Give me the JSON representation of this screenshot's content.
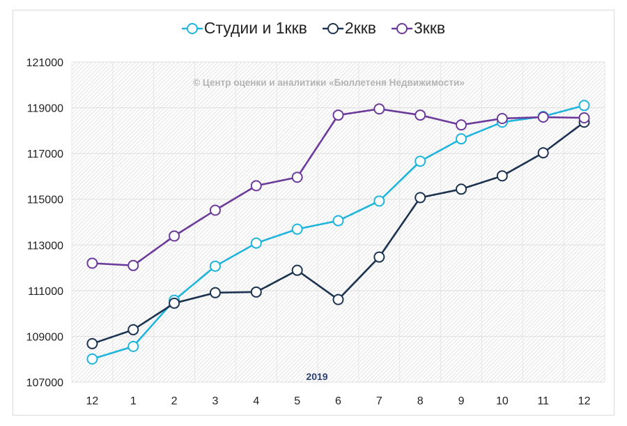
{
  "chart_data": {
    "type": "line",
    "title": "",
    "watermark": "© Центр оценки и аналитики «Бюллетеня Недвижимости»",
    "year_label": "2019",
    "xlabel": "",
    "ylabel": "",
    "categories": [
      "12",
      "1",
      "2",
      "3",
      "4",
      "5",
      "6",
      "7",
      "8",
      "9",
      "10",
      "11",
      "12"
    ],
    "ylim": [
      107000,
      121000
    ],
    "yticks": [
      "107000",
      "109000",
      "111000",
      "113000",
      "115000",
      "117000",
      "119000",
      "121000"
    ],
    "ytick_values": [
      107000,
      109000,
      111000,
      113000,
      115000,
      117000,
      119000,
      121000
    ],
    "grid": true,
    "legend_position": "top",
    "series": [
      {
        "name": "Студии и 1ккв",
        "color": "#1fb4dc",
        "values": [
          108010,
          108560,
          110580,
          112070,
          113080,
          113690,
          114060,
          114920,
          116660,
          117640,
          118370,
          118620,
          119100
        ]
      },
      {
        "name": "2ккв",
        "color": "#1c3350",
        "values": [
          108680,
          109290,
          110450,
          110910,
          110940,
          111890,
          110610,
          112470,
          115070,
          115440,
          116020,
          117030,
          118370
        ]
      },
      {
        "name": "3ккв",
        "color": "#6b3a9a",
        "values": [
          112200,
          112100,
          113390,
          114520,
          115590,
          115960,
          118680,
          118950,
          118680,
          118250,
          118530,
          118590,
          118560
        ]
      }
    ]
  }
}
